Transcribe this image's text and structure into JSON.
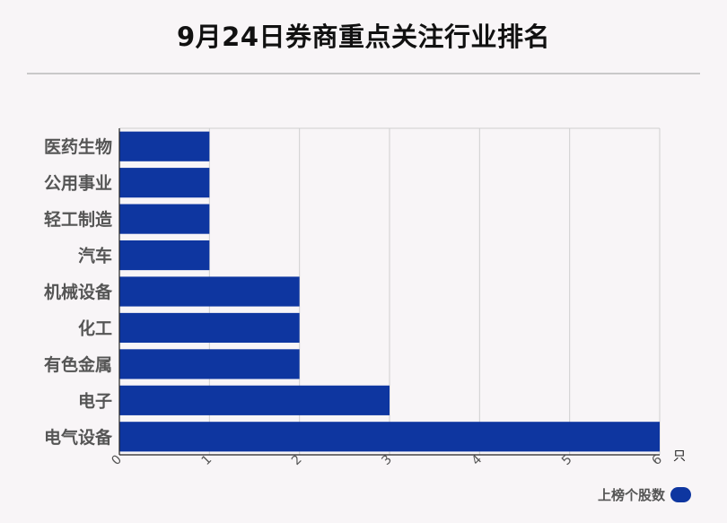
{
  "chart_data": {
    "type": "bar",
    "orientation": "horizontal",
    "title": "9月24日券商重点关注行业排名",
    "categories": [
      "医药生物",
      "公用事业",
      "轻工制造",
      "汽车",
      "机械设备",
      "化工",
      "有色金属",
      "电子",
      "电气设备"
    ],
    "series": [
      {
        "name": "上榜个股数",
        "values": [
          1,
          1,
          1,
          1,
          2,
          2,
          2,
          3,
          6
        ]
      }
    ],
    "xlim": [
      0,
      6
    ],
    "xticks": [
      "0",
      "1",
      "2",
      "3",
      "4",
      "5",
      "6"
    ],
    "x_unit": "只",
    "grid": true,
    "legend_position": "bottom-right",
    "bar_color": "#0e36a0"
  }
}
